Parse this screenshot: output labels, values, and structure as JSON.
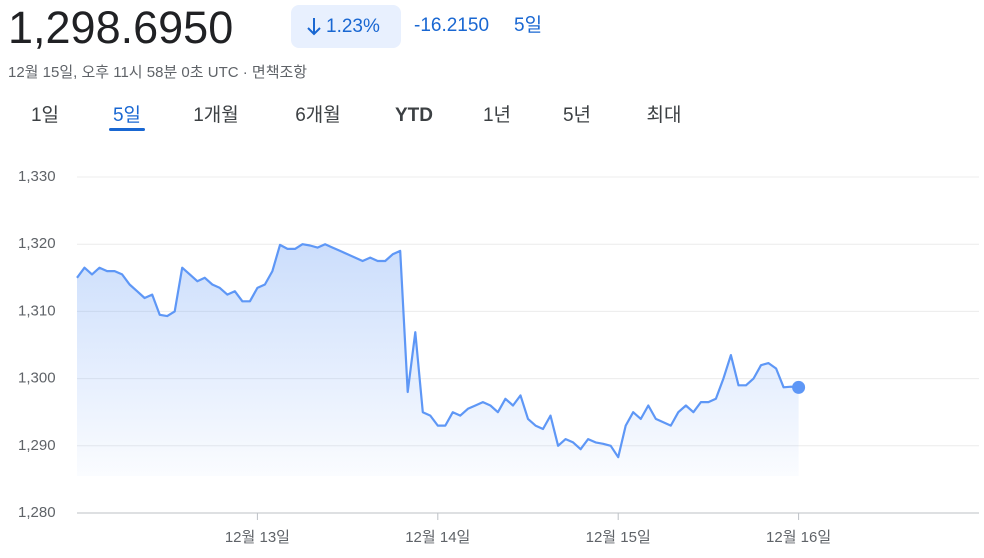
{
  "header": {
    "price": "1,298.6950",
    "change_percent": "1.23%",
    "change": "-16.2150",
    "period": "5일",
    "timestamp": "12월 15일, 오후 11시 58분 0초 UTC · 면책조항"
  },
  "tabs": [
    "1일",
    "5일",
    "1개월",
    "6개월",
    "YTD",
    "1년",
    "5년",
    "최대"
  ],
  "selected_tab": 1,
  "chart_data": {
    "type": "line",
    "color": "#5e97f6",
    "fill": true,
    "grid": true,
    "values": [
      1315,
      1316.5,
      1315.5,
      1316.5,
      1316,
      1316,
      1315.5,
      1314,
      1313,
      1312,
      1312.5,
      1309.5,
      1309.3,
      1310,
      1316.5,
      1315.5,
      1314.5,
      1315,
      1314,
      1313.5,
      1312.5,
      1313,
      1311.5,
      1311.5,
      1313.5,
      1314,
      1316,
      1319.9,
      1319.3,
      1319.3,
      1320,
      1319.8,
      1319.5,
      1320,
      1319.5,
      1319,
      1318.5,
      1318,
      1317.5,
      1318,
      1317.5,
      1317.5,
      1318.5,
      1319,
      1298,
      1306.9,
      1295,
      1294.5,
      1293,
      1293,
      1295,
      1294.5,
      1295.5,
      1296,
      1296.5,
      1296,
      1295,
      1297,
      1296,
      1297.5,
      1294,
      1293,
      1292.5,
      1294.5,
      1290,
      1291,
      1290.5,
      1289.5,
      1291,
      1290.5,
      1290.3,
      1290,
      1288.3,
      1293,
      1295,
      1294,
      1296,
      1294,
      1293.5,
      1293,
      1295,
      1296,
      1295,
      1296.5,
      1296.5,
      1297,
      1300,
      1303.5,
      1299,
      1299,
      1300,
      1302,
      1302.3,
      1301.5,
      1298.7,
      1298.8,
      1298.695
    ],
    "xlim": [
      0,
      120
    ],
    "xticks": [
      {
        "value": 24,
        "label": "12월 13일"
      },
      {
        "value": 48,
        "label": "12월 14일"
      },
      {
        "value": 72,
        "label": "12월 15일"
      },
      {
        "value": 96,
        "label": "12월 16일"
      }
    ],
    "ylim": [
      1280,
      1330
    ],
    "yticks": [
      {
        "value": 1280,
        "label": "1,280"
      },
      {
        "value": 1290,
        "label": "1,290"
      },
      {
        "value": 1300,
        "label": "1,300"
      },
      {
        "value": 1310,
        "label": "1,310"
      },
      {
        "value": 1320,
        "label": "1,320"
      },
      {
        "value": 1330,
        "label": "1,330"
      }
    ]
  }
}
